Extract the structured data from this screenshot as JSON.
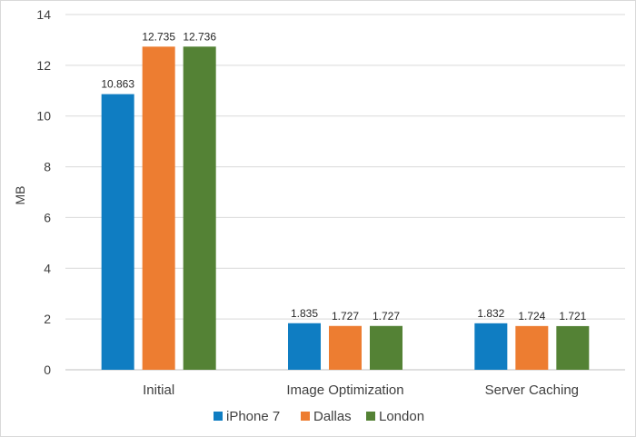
{
  "chart_data": {
    "type": "bar",
    "categories": [
      "Initial",
      "Image Optimization",
      "Server Caching"
    ],
    "series": [
      {
        "name": "iPhone 7",
        "color": "#0F7DC2",
        "values": [
          10.863,
          1.835,
          1.832
        ],
        "labels": [
          "10.863",
          "1.835",
          "1.832"
        ]
      },
      {
        "name": "Dallas",
        "color": "#ED7D31",
        "values": [
          12.735,
          1.727,
          1.724
        ],
        "labels": [
          "12.735",
          "1.727",
          "1.724"
        ]
      },
      {
        "name": "London",
        "color": "#548235",
        "values": [
          12.736,
          1.727,
          1.721
        ],
        "labels": [
          "12.736",
          "1.727",
          "1.721"
        ]
      }
    ],
    "ylabel": "MB",
    "xlabel": "",
    "ylim": [
      0,
      14
    ],
    "yticks": [
      "0",
      "2",
      "4",
      "6",
      "8",
      "10",
      "12",
      "14"
    ],
    "grid": true,
    "legend": "bottom"
  }
}
